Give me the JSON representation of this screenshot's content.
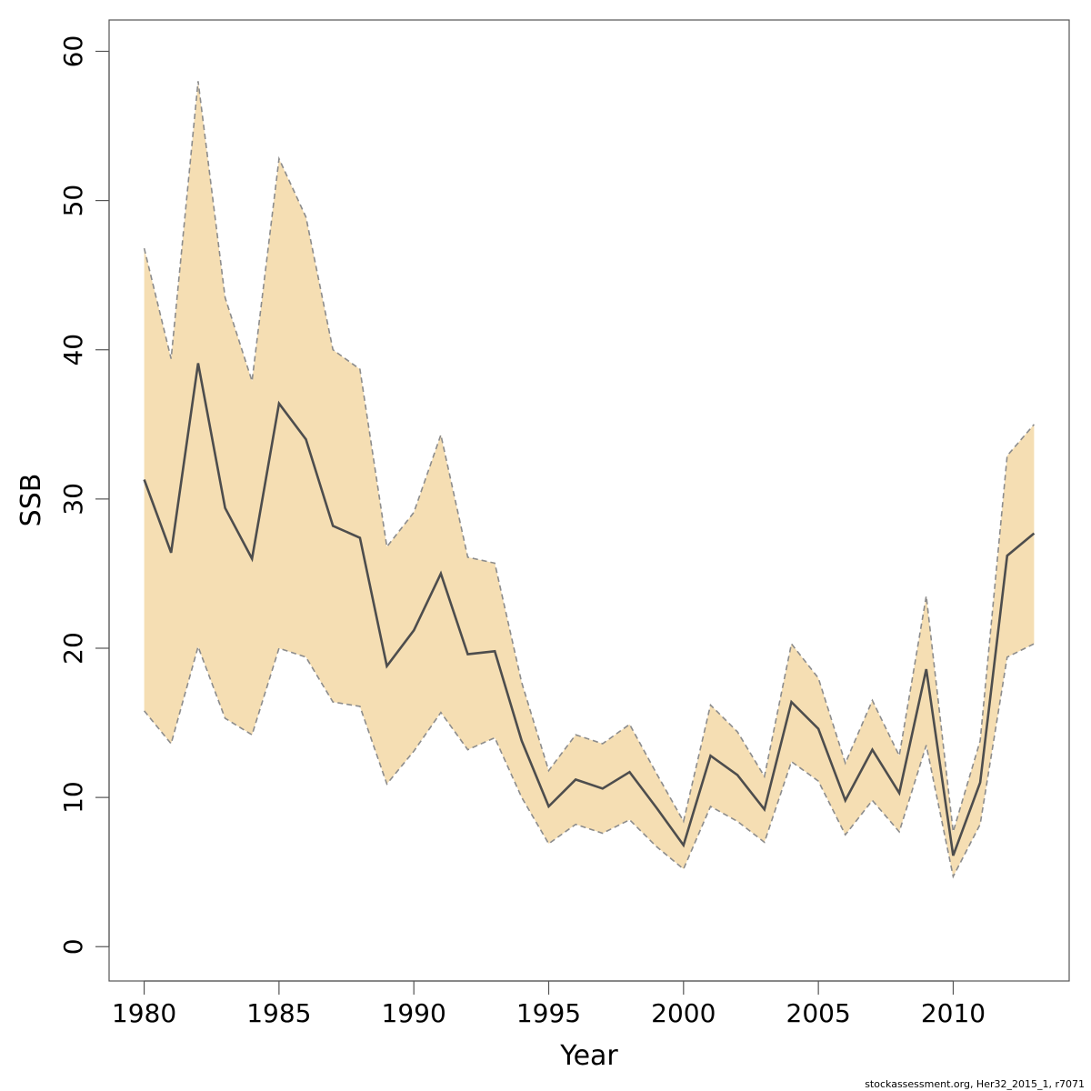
{
  "chart_data": {
    "type": "line",
    "title": "",
    "xlabel": "Year",
    "ylabel": "SSB",
    "xlim": [
      1978.7,
      2014.3
    ],
    "ylim": [
      -2.3,
      62.1
    ],
    "xticks": [
      1980,
      1985,
      1990,
      1995,
      2000,
      2005,
      2010
    ],
    "yticks": [
      0,
      10,
      20,
      30,
      40,
      50,
      60
    ],
    "grid": false,
    "x": [
      1980,
      1981,
      1982,
      1983,
      1984,
      1985,
      1986,
      1987,
      1988,
      1989,
      1990,
      1991,
      1992,
      1993,
      1994,
      1995,
      1996,
      1997,
      1998,
      1999,
      2000,
      2001,
      2002,
      2003,
      2004,
      2005,
      2006,
      2007,
      2008,
      2009,
      2010,
      2011,
      2012,
      2013
    ],
    "series": [
      {
        "role": "estimate",
        "values": [
          31.3,
          26.4,
          39.1,
          29.4,
          26.0,
          36.4,
          34.0,
          28.2,
          27.4,
          18.8,
          21.2,
          25.0,
          19.6,
          19.8,
          13.8,
          9.4,
          11.2,
          10.6,
          11.7,
          9.3,
          6.8,
          12.8,
          11.5,
          9.2,
          16.4,
          14.6,
          9.8,
          13.2,
          10.3,
          18.6,
          6.1,
          11.0,
          26.2,
          27.7
        ]
      },
      {
        "role": "upper",
        "values": [
          46.8,
          39.4,
          58.0,
          43.5,
          37.9,
          52.8,
          48.9,
          40.0,
          38.7,
          26.8,
          29.1,
          34.3,
          26.1,
          25.7,
          17.7,
          11.8,
          14.2,
          13.6,
          14.9,
          11.6,
          8.4,
          16.2,
          14.4,
          11.4,
          20.3,
          18.0,
          12.3,
          16.5,
          12.8,
          23.5,
          7.7,
          13.8,
          32.9,
          35.0
        ]
      },
      {
        "role": "lower",
        "values": [
          15.8,
          13.6,
          20.1,
          15.3,
          14.2,
          20.0,
          19.4,
          16.4,
          16.1,
          10.9,
          13.1,
          15.7,
          13.2,
          14.0,
          10.0,
          6.9,
          8.2,
          7.6,
          8.5,
          6.7,
          5.2,
          9.4,
          8.4,
          7.0,
          12.4,
          11.1,
          7.5,
          9.8,
          7.7,
          13.5,
          4.7,
          8.2,
          19.4,
          20.3
        ]
      }
    ],
    "colors": {
      "band": "#f5deb3",
      "line": "#4d4d4d",
      "band_border": "#8c8c8c"
    }
  },
  "caption": "stockassessment.org, Her32_2015_1, r7071"
}
